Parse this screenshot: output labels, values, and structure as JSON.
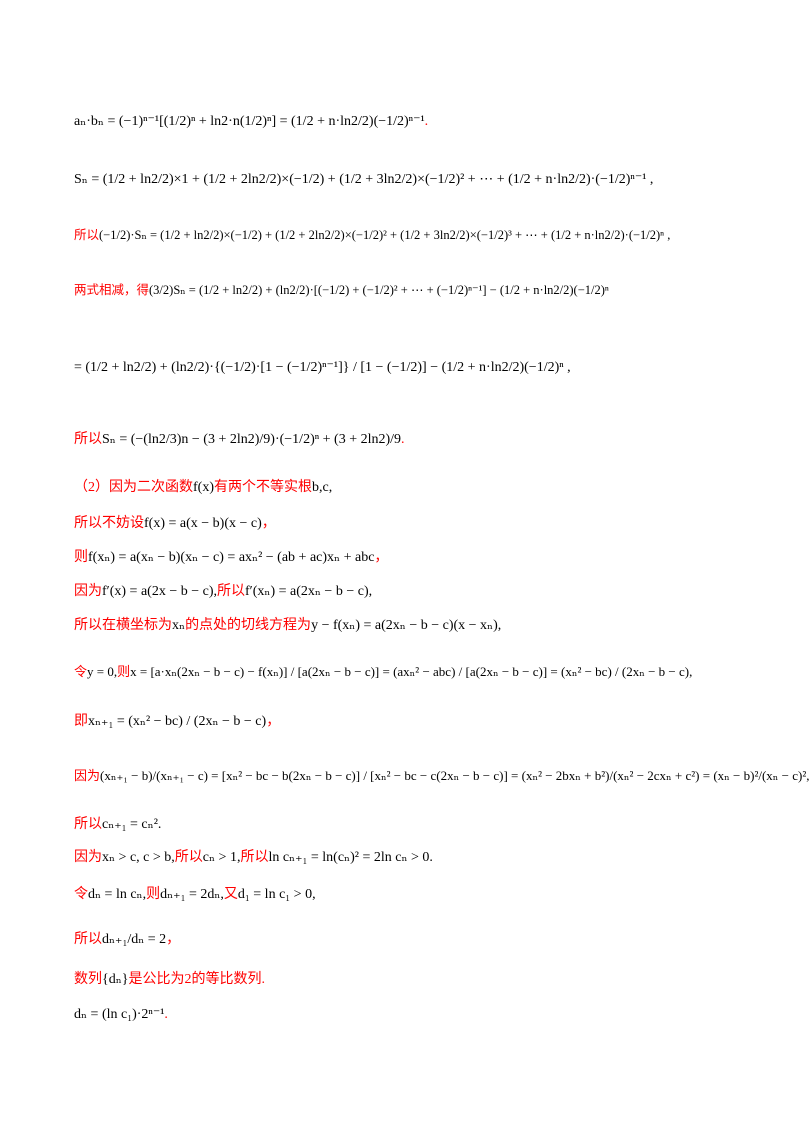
{
  "lines": [
    {
      "parts": [
        {
          "text": "aₙ·bₙ = (−1)ⁿ⁻¹[(1/2)ⁿ + ln2·n(1/2)ⁿ] = (1/2 + n·ln2/2)(−1/2)ⁿ⁻¹",
          "color": "#000000"
        },
        {
          "text": ".",
          "color": "#ff0000"
        }
      ]
    },
    {
      "parts": [
        {
          "text": "Sₙ = (1/2 + ln2/2)×1 + (1/2 + 2ln2/2)×(−1/2) + (1/2 + 3ln2/2)×(−1/2)² + ⋯ + (1/2 + n·ln2/2)·(−1/2)ⁿ⁻¹ ,",
          "color": "#000000"
        }
      ]
    },
    {
      "parts": [
        {
          "text": "所以",
          "color": "#ff0000"
        },
        {
          "text": "(−1/2)·Sₙ = (1/2 + ln2/2)×(−1/2) + (1/2 + 2ln2/2)×(−1/2)² + (1/2 + 3ln2/2)×(−1/2)³ + ⋯ + (1/2 + n·ln2/2)·(−1/2)ⁿ ,",
          "color": "#000000"
        }
      ]
    },
    {
      "parts": [
        {
          "text": "两式相减，得",
          "color": "#ff0000"
        },
        {
          "text": "(3/2)Sₙ = (1/2 + ln2/2) + (ln2/2)·[(−1/2) + (−1/2)² + ⋯ + (−1/2)ⁿ⁻¹] − (1/2 + n·ln2/2)(−1/2)ⁿ",
          "color": "#000000"
        }
      ]
    },
    {
      "parts": [
        {
          "text": "= (1/2 + ln2/2) + (ln2/2)·{(−1/2)·[1 − (−1/2)ⁿ⁻¹]} / [1 − (−1/2)] − (1/2 + n·ln2/2)(−1/2)ⁿ ,",
          "color": "#000000"
        }
      ]
    },
    {
      "parts": [
        {
          "text": "所以",
          "color": "#ff0000"
        },
        {
          "text": "Sₙ = (−(ln2/3)n − (3 + 2ln2)/9)·(−1/2)ⁿ + (3 + 2ln2)/9",
          "color": "#000000"
        },
        {
          "text": ".",
          "color": "#ff0000"
        }
      ]
    },
    {
      "parts": [
        {
          "text": "（2）因为二次函数",
          "color": "#ff0000"
        },
        {
          "text": "f(x)",
          "color": "#000000"
        },
        {
          "text": "有两个不等实根",
          "color": "#ff0000"
        },
        {
          "text": "b,c,",
          "color": "#000000"
        }
      ]
    },
    {
      "parts": [
        {
          "text": "所以不妨设",
          "color": "#ff0000"
        },
        {
          "text": "f(x) = a(x − b)(x − c)",
          "color": "#000000"
        },
        {
          "text": "，",
          "color": "#ff0000"
        }
      ]
    },
    {
      "parts": [
        {
          "text": "则",
          "color": "#ff0000"
        },
        {
          "text": "f(xₙ) = a(xₙ − b)(xₙ − c) = axₙ² − (ab + ac)xₙ + abc",
          "color": "#000000"
        },
        {
          "text": "，",
          "color": "#ff0000"
        }
      ]
    },
    {
      "parts": [
        {
          "text": "因为",
          "color": "#ff0000"
        },
        {
          "text": "f′(x) = a(2x − b − c),",
          "color": "#000000"
        },
        {
          "text": "所以",
          "color": "#ff0000"
        },
        {
          "text": "f′(xₙ) = a(2xₙ − b − c),",
          "color": "#000000"
        }
      ]
    },
    {
      "parts": [
        {
          "text": "所以在横坐标为",
          "color": "#ff0000"
        },
        {
          "text": "xₙ",
          "color": "#000000"
        },
        {
          "text": "的点处的切线方程为",
          "color": "#ff0000"
        },
        {
          "text": "y − f(xₙ) = a(2xₙ − b − c)(x − xₙ),",
          "color": "#000000"
        }
      ]
    },
    {
      "parts": [
        {
          "text": "令",
          "color": "#ff0000"
        },
        {
          "text": "y = 0,",
          "color": "#000000"
        },
        {
          "text": "则",
          "color": "#ff0000"
        },
        {
          "text": "x = [a·xₙ(2xₙ − b − c) − f(xₙ)] / [a(2xₙ − b − c)] = (axₙ² − abc) / [a(2xₙ − b − c)] = (xₙ² − bc) / (2xₙ − b − c),",
          "color": "#000000"
        }
      ]
    },
    {
      "parts": [
        {
          "text": "即",
          "color": "#ff0000"
        },
        {
          "text": "xₙ₊₁ = (xₙ² − bc) / (2xₙ − b − c)",
          "color": "#000000"
        },
        {
          "text": "，",
          "color": "#ff0000"
        }
      ]
    },
    {
      "parts": [
        {
          "text": "因为",
          "color": "#ff0000"
        },
        {
          "text": "(xₙ₊₁ − b)/(xₙ₊₁ − c) = [xₙ² − bc − b(2xₙ − b − c)] / [xₙ² − bc − c(2xₙ − b − c)] = (xₙ² − 2bxₙ + b²)/(xₙ² − 2cxₙ + c²) = (xₙ − b)²/(xₙ − c)²,",
          "color": "#000000"
        }
      ]
    },
    {
      "parts": [
        {
          "text": "所以",
          "color": "#ff0000"
        },
        {
          "text": "cₙ₊₁ = cₙ².",
          "color": "#000000"
        }
      ]
    },
    {
      "parts": [
        {
          "text": "因为",
          "color": "#ff0000"
        },
        {
          "text": "xₙ > c, c > b,",
          "color": "#000000"
        },
        {
          "text": "所以",
          "color": "#ff0000"
        },
        {
          "text": "cₙ > 1,",
          "color": "#000000"
        },
        {
          "text": "所以",
          "color": "#ff0000"
        },
        {
          "text": "ln cₙ₊₁ = ln(cₙ)² = 2ln cₙ > 0.",
          "color": "#000000"
        }
      ]
    },
    {
      "parts": [
        {
          "text": "令",
          "color": "#ff0000"
        },
        {
          "text": "dₙ = ln cₙ,",
          "color": "#000000"
        },
        {
          "text": "则",
          "color": "#ff0000"
        },
        {
          "text": "dₙ₊₁ = 2dₙ,",
          "color": "#000000"
        },
        {
          "text": "又",
          "color": "#ff0000"
        },
        {
          "text": "d₁ = ln c₁ > 0,",
          "color": "#000000"
        }
      ]
    },
    {
      "parts": [
        {
          "text": "所以",
          "color": "#ff0000"
        },
        {
          "text": "dₙ₊₁/dₙ = 2",
          "color": "#000000"
        },
        {
          "text": "，",
          "color": "#ff0000"
        }
      ]
    },
    {
      "parts": [
        {
          "text": "数列",
          "color": "#ff0000"
        },
        {
          "text": "{dₙ}",
          "color": "#000000"
        },
        {
          "text": "是公比为2的等比数列.",
          "color": "#ff0000"
        }
      ]
    },
    {
      "parts": [
        {
          "text": "dₙ = (ln c₁)·2ⁿ⁻¹",
          "color": "#000000"
        },
        {
          "text": ".",
          "color": "#ff0000"
        }
      ]
    }
  ]
}
